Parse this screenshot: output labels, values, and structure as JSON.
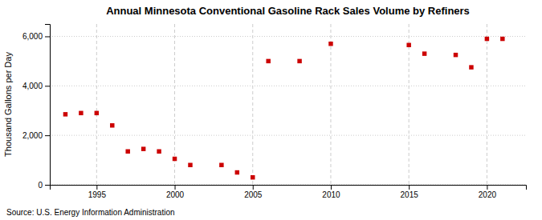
{
  "chart_data": {
    "type": "scatter",
    "title": "Annual Minnesota Conventional Gasoline Rack Sales Volume by Refiners",
    "ylabel": "Thousand Gallons per Day",
    "annotation": "Source: U.S. Energy Information Administration",
    "x": [
      1993,
      1994,
      1995,
      1996,
      1997,
      1998,
      1999,
      2000,
      2001,
      2003,
      2004,
      2005,
      2006,
      2008,
      2010,
      2015,
      2016,
      2018,
      2019,
      2020,
      2021
    ],
    "values": [
      2850,
      2900,
      2900,
      2400,
      1350,
      1450,
      1350,
      1050,
      800,
      800,
      500,
      300,
      5000,
      5000,
      5700,
      5650,
      5300,
      5250,
      4750,
      5900,
      5900
    ],
    "color": "#cc0000",
    "marker": "square",
    "xlim": [
      1992,
      2022.5
    ],
    "ylim": [
      0,
      6500
    ],
    "xticks": [
      1995,
      2000,
      2005,
      2010,
      2015,
      2020
    ],
    "yticks": [
      {
        "value": 0,
        "label": "0"
      },
      {
        "value": 2000,
        "label": "2,000"
      },
      {
        "value": 4000,
        "label": "4,000"
      },
      {
        "value": 6000,
        "label": "6,000"
      }
    ],
    "grid": true
  }
}
